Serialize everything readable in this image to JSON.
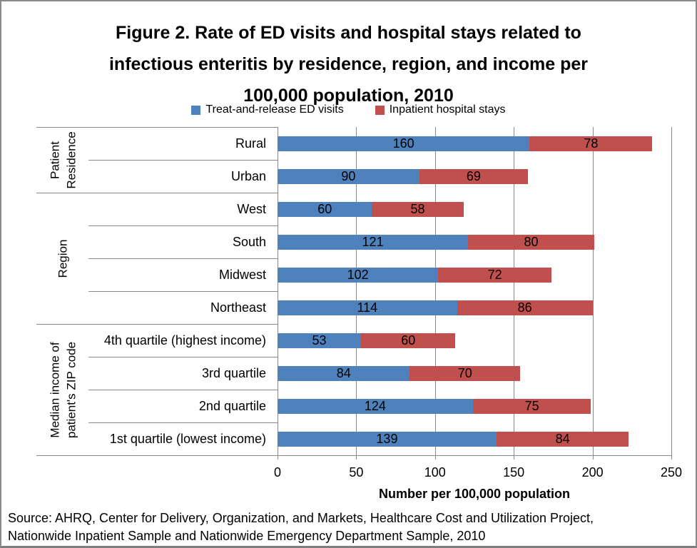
{
  "title_lines": [
    "Figure 2. Rate of ED visits and hospital stays related to",
    "infectious enteritis by residence, region, and income per",
    "100,000 population, 2010"
  ],
  "legend": [
    {
      "label": "Treat-and-release ED visits",
      "color": "#4F81BD"
    },
    {
      "label": "Inpatient hospital stays",
      "color": "#C0504D"
    }
  ],
  "chart_data": {
    "type": "bar",
    "orientation": "horizontal",
    "stacked": true,
    "title": "Figure 2. Rate of ED visits and hospital stays related to infectious enteritis by residence, region, and income per 100,000 population, 2010",
    "xlabel": "Number per 100,000 population",
    "xlim": [
      0,
      250
    ],
    "xticks": [
      0,
      50,
      100,
      150,
      200,
      250
    ],
    "grid": true,
    "legend_position": "top",
    "groups": [
      {
        "label": "Patient\nResidence",
        "categories": [
          "Rural",
          "Urban"
        ]
      },
      {
        "label": "Region",
        "categories": [
          "West",
          "South",
          "Midwest",
          "Northeast"
        ]
      },
      {
        "label": "Median income of\npatient's ZIP code",
        "categories": [
          "4th quartile (highest income)",
          "3rd quartile",
          "2nd quartile",
          "1st quartile (lowest income)"
        ]
      }
    ],
    "categories": [
      "Rural",
      "Urban",
      "West",
      "South",
      "Midwest",
      "Northeast",
      "4th quartile (highest income)",
      "3rd quartile",
      "2nd quartile",
      "1st quartile (lowest income)"
    ],
    "series": [
      {
        "name": "Treat-and-release ED visits",
        "color": "#4F81BD",
        "values": [
          160,
          90,
          60,
          121,
          102,
          114,
          53,
          84,
          124,
          139
        ]
      },
      {
        "name": "Inpatient hospital stays",
        "color": "#C0504D",
        "values": [
          78,
          69,
          58,
          80,
          72,
          86,
          60,
          70,
          75,
          84
        ]
      }
    ]
  },
  "source_lines": [
    "Source: AHRQ, Center for Delivery, Organization, and Markets, Healthcare Cost and Utilization Project,",
    "Nationwide Inpatient Sample and Nationwide Emergency Department Sample, 2010"
  ],
  "colors": {
    "bar_blue": "#4F81BD",
    "bar_red": "#C0504D",
    "gridline": "#898989",
    "border": "#8a8a8a",
    "text": "#000000"
  }
}
